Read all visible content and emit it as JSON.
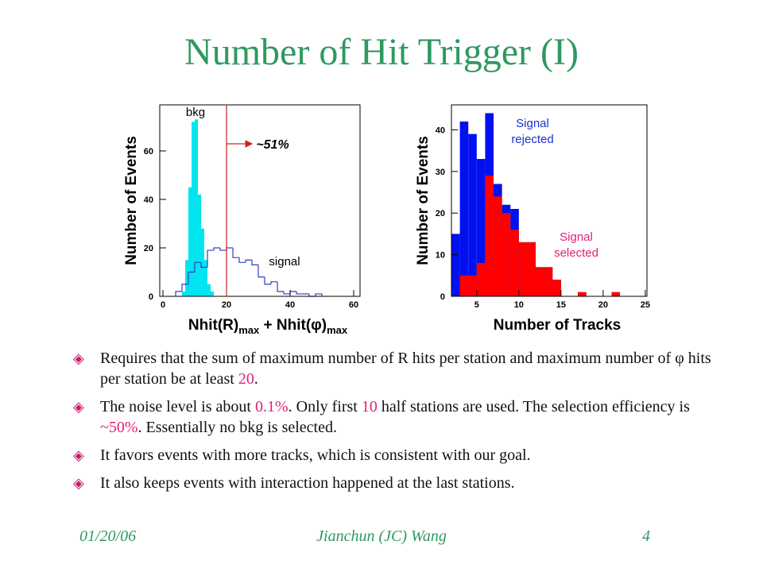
{
  "title": "Number of Hit Trigger (I)",
  "chart_data": [
    {
      "type": "histogram",
      "ylabel": "Number of Events",
      "xlabel": [
        "Nhit(R)",
        "max",
        " + Nhit(φ)",
        "max"
      ],
      "xlim": [
        -1,
        62
      ],
      "ylim": [
        0,
        79
      ],
      "xticks": [
        0,
        20,
        40,
        60
      ],
      "yticks": [
        0,
        20,
        40,
        60
      ],
      "cut_line": 20,
      "cut_color": "#d02020",
      "annotations": {
        "bkg": "bkg",
        "signal": "signal",
        "fraction": "~51%"
      },
      "series": [
        {
          "name": "bkg",
          "color": "#00e5f0",
          "style": "fill",
          "bins": [
            6,
            7,
            8,
            9,
            10,
            11,
            12,
            13,
            14,
            15,
            16
          ],
          "counts": [
            2,
            15,
            45,
            72,
            73,
            42,
            28,
            15,
            5,
            2
          ]
        },
        {
          "name": "signal",
          "color": "#3040c0",
          "style": "step",
          "bins": [
            4,
            6,
            8,
            10,
            12,
            14,
            16,
            18,
            20,
            22,
            24,
            26,
            28,
            30,
            32,
            34,
            36,
            38,
            40,
            42,
            44,
            46,
            48,
            50
          ],
          "counts": [
            2,
            5,
            10,
            14,
            12,
            19,
            20,
            19,
            20,
            16,
            14,
            15,
            13,
            8,
            5,
            6,
            2,
            1,
            2,
            1,
            1,
            0,
            1
          ]
        }
      ]
    },
    {
      "type": "histogram",
      "ylabel": "Number of Events",
      "xlabel": [
        "Number of Tracks"
      ],
      "xlim": [
        2,
        25.2
      ],
      "ylim": [
        0,
        46
      ],
      "xticks": [
        5,
        10,
        15,
        20,
        25
      ],
      "yticks": [
        0,
        10,
        20,
        30,
        40
      ],
      "annotations": {
        "rejected": "Signal rejected",
        "selected": "Signal selected"
      },
      "series": [
        {
          "name": "Signal rejected",
          "color": "#0010ee",
          "style": "fill",
          "bins": [
            2,
            3,
            4,
            5,
            6,
            7,
            8,
            9,
            10,
            11,
            12,
            13,
            14,
            15,
            16,
            17,
            18,
            19,
            20,
            21,
            22
          ],
          "counts": [
            15,
            42,
            39,
            33,
            44,
            27,
            22,
            21,
            13,
            13,
            7,
            7,
            4,
            0,
            0,
            1,
            0,
            0,
            0,
            1
          ]
        },
        {
          "name": "Signal selected",
          "color": "#ff0000",
          "style": "fill",
          "bins": [
            2,
            3,
            4,
            5,
            6,
            7,
            8,
            9,
            10,
            11,
            12,
            13,
            14,
            15,
            16,
            17,
            18,
            19,
            20,
            21,
            22
          ],
          "counts": [
            0,
            5,
            5,
            8,
            29,
            24,
            20,
            16,
            13,
            13,
            7,
            7,
            4,
            0,
            0,
            1,
            0,
            0,
            0,
            1
          ]
        }
      ]
    }
  ],
  "bullets": [
    [
      {
        "text": "Requires that the sum of maximum number of R hits per station and maximum number of φ hits per station be at least "
      },
      {
        "text": "20",
        "color": "#e0207a"
      },
      {
        "text": "."
      }
    ],
    [
      {
        "text": "The noise level is about "
      },
      {
        "text": "0.1%",
        "color": "#e0207a"
      },
      {
        "text": ". Only first "
      },
      {
        "text": "10",
        "color": "#e0207a"
      },
      {
        "text": " half stations are used. The selection efficiency is "
      },
      {
        "text": "~50%",
        "color": "#e0207a"
      },
      {
        "text": ". Essentially no bkg is selected."
      }
    ],
    [
      {
        "text": "It favors events with more tracks, which is consistent with our goal."
      }
    ],
    [
      {
        "text": "It also keeps events with interaction happened at the last stations."
      }
    ]
  ],
  "footer": {
    "date": "01/20/06",
    "author": "Jianchun (JC) Wang",
    "page": "4"
  }
}
